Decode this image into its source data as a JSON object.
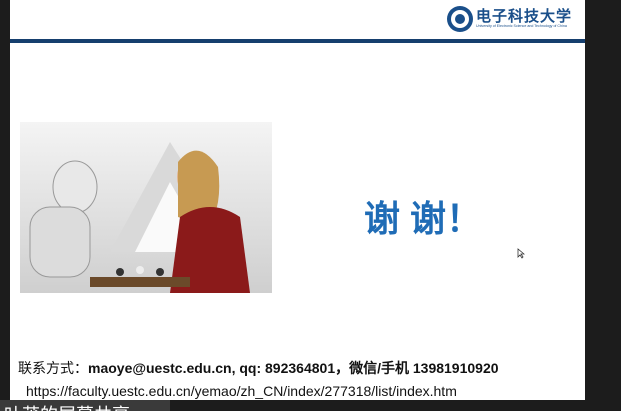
{
  "logo": {
    "name": "电子科技大学",
    "subtitle": "University of Electronic Science and Technology of China"
  },
  "slide": {
    "heading": "谢 谢！",
    "contact_label": "联系方式：",
    "contact": "maoye@uestc.edu.cn, qq: 892364801，微信/手机 13981910920",
    "url": "https://faculty.uestc.edu.cn/yemao/zh_CN/index/277318/list/index.htm"
  },
  "share_banner": "叶茂的屏幕共享"
}
